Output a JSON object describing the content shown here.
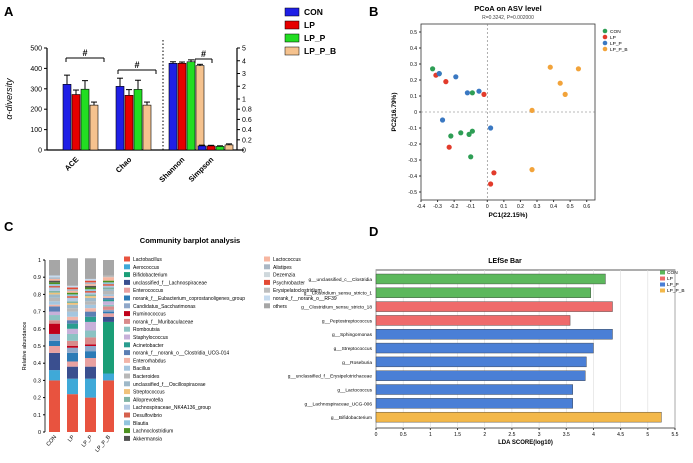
{
  "figure_title": "Four-panel comparison of gut microbiota among CON, LP, LP_P and LP_P_B groups",
  "colors": {
    "CON": "#1f1fe6",
    "LP": "#e60000",
    "LP_P": "#22dd22",
    "LP_P_B": "#f5c28e",
    "pcoa_CON": "#2e9e55",
    "pcoa_LP": "#e23b2b",
    "pcoa_LP_P": "#3a78c2",
    "pcoa_LP_P_B": "#f2a33a",
    "lefse_CON": "#5cb85c",
    "lefse_LP": "#ef6b6b",
    "lefse_LP_P": "#4a7fd6",
    "lefse_LP_P_B": "#f3b84a"
  },
  "chart_data": [
    {
      "panel_label": "A",
      "type": "bar",
      "ylabel": "α-diversity",
      "categories": [
        "ACE",
        "Chao",
        "Shannon",
        "Simpson"
      ],
      "left_axis": {
        "ylim": [
          0,
          500
        ],
        "ticks": [
          "0",
          "100",
          "200",
          "300",
          "400",
          "500"
        ],
        "applies_to": [
          "ACE",
          "Chao"
        ]
      },
      "right_axis": {
        "ylim": [
          0,
          5
        ],
        "ticks": [
          "0",
          "0.2",
          "0.4",
          "0.6",
          "0.8",
          "1",
          "2",
          "3",
          "4",
          "5"
        ],
        "applies_to": [
          "Shannon",
          "Simpson"
        ]
      },
      "series": [
        {
          "name": "CON",
          "values": [
            322,
            312,
            3.8,
            0.08
          ],
          "errors": [
            45,
            40,
            0.12,
            0.015
          ]
        },
        {
          "name": "LP",
          "values": [
            272,
            268,
            3.8,
            0.08
          ],
          "errors": [
            22,
            28,
            0.1,
            0.012
          ]
        },
        {
          "name": "LP_P",
          "values": [
            298,
            297,
            3.92,
            0.07
          ],
          "errors": [
            42,
            45,
            0.15,
            0.012
          ]
        },
        {
          "name": "LP_P_B",
          "values": [
            220,
            220,
            3.62,
            0.1
          ],
          "errors": [
            15,
            15,
            0.1,
            0.02
          ]
        }
      ],
      "significance_marker": "#",
      "legend": [
        "CON",
        "LP",
        "LP_P",
        "LP_P_B"
      ]
    },
    {
      "panel_label": "B",
      "type": "scatter",
      "title": "PCoA on ASV level",
      "subtitle": "R=0.3242, P=0.002000",
      "xlabel": "PC1(22.15%)",
      "ylabel": "PC2(16.79%)",
      "xlim": [
        -0.4,
        0.65
      ],
      "ylim": [
        -0.55,
        0.55
      ],
      "xticks": [
        "-0.4",
        "-0.3",
        "-0.2",
        "-0.1",
        "0",
        "0.1",
        "0.2",
        "0.3",
        "0.4",
        "0.5",
        "0.6"
      ],
      "yticks": [
        "-0.5",
        "-0.4",
        "-0.3",
        "-0.2",
        "-0.1",
        "0",
        "0.1",
        "0.2",
        "0.3",
        "0.4",
        "0.5"
      ],
      "legend": [
        "CON",
        "LP",
        "LP_P",
        "LP_P_B"
      ],
      "series": [
        {
          "name": "CON",
          "points": [
            [
              -0.33,
              0.27
            ],
            [
              -0.29,
              0.24
            ],
            [
              -0.09,
              0.12
            ],
            [
              -0.22,
              -0.15
            ],
            [
              -0.16,
              -0.13
            ],
            [
              -0.11,
              -0.14
            ],
            [
              -0.09,
              -0.12
            ],
            [
              -0.1,
              -0.28
            ]
          ]
        },
        {
          "name": "LP",
          "points": [
            [
              -0.31,
              0.23
            ],
            [
              -0.25,
              0.19
            ],
            [
              -0.02,
              0.11
            ],
            [
              -0.23,
              -0.22
            ],
            [
              0.04,
              -0.38
            ],
            [
              0.02,
              -0.45
            ]
          ]
        },
        {
          "name": "LP_P",
          "points": [
            [
              -0.29,
              0.24
            ],
            [
              -0.19,
              0.22
            ],
            [
              -0.05,
              0.13
            ],
            [
              -0.12,
              0.12
            ],
            [
              -0.27,
              -0.05
            ],
            [
              0.02,
              -0.1
            ]
          ]
        },
        {
          "name": "LP_P_B",
          "points": [
            [
              0.38,
              0.28
            ],
            [
              0.44,
              0.18
            ],
            [
              0.47,
              0.11
            ],
            [
              0.55,
              0.27
            ],
            [
              0.27,
              0.01
            ],
            [
              0.27,
              -0.36
            ]
          ]
        }
      ]
    },
    {
      "panel_label": "C",
      "type": "bar",
      "stacked": true,
      "title": "Community barplot analysis",
      "ylabel": "Relative abundance",
      "ylim": [
        0,
        1
      ],
      "yticks": [
        "0",
        "0.1",
        "0.2",
        "0.3",
        "0.4",
        "0.5",
        "0.6",
        "0.7",
        "0.8",
        "0.9",
        "1"
      ],
      "categories": [
        "CON",
        "LP",
        "LP_P",
        "LP_P_B"
      ],
      "taxa": [
        {
          "name": "Lactobacillus",
          "color": "#e8533f",
          "values": [
            0.3,
            0.22,
            0.2,
            0.3
          ]
        },
        {
          "name": "Aerococcus",
          "color": "#3fa9d8",
          "values": [
            0.06,
            0.09,
            0.11,
            0.04
          ]
        },
        {
          "name": "Bifidobacterium",
          "color": "#1b9e77",
          "values": [
            0.0,
            0.0,
            0.0,
            0.3
          ]
        },
        {
          "name": "unclassified_f__Lachnospiraceae",
          "color": "#3a4f8f",
          "values": [
            0.1,
            0.07,
            0.07,
            0.03
          ]
        },
        {
          "name": "Enterococcus",
          "color": "#e9a1a0",
          "values": [
            0.04,
            0.03,
            0.05,
            0.02
          ]
        },
        {
          "name": "norank_f__Eubacterium_coprostanoligenes_group",
          "color": "#2c7bb6",
          "values": [
            0.03,
            0.05,
            0.04,
            0.01
          ]
        },
        {
          "name": "Candidatus_Saccharimonas",
          "color": "#8fa7c9",
          "values": [
            0.04,
            0.03,
            0.03,
            0.01
          ]
        },
        {
          "name": "Ruminococcus",
          "color": "#c0001a",
          "values": [
            0.06,
            0.01,
            0.01,
            0.0
          ]
        },
        {
          "name": "norank_f__Muribaculaceae",
          "color": "#d98b8b",
          "values": [
            0.02,
            0.03,
            0.04,
            0.02
          ]
        },
        {
          "name": "Romboutsia",
          "color": "#8bc3c3",
          "values": [
            0.03,
            0.04,
            0.04,
            0.01
          ]
        },
        {
          "name": "Staphylococcus",
          "color": "#c7b0d9",
          "values": [
            0.02,
            0.03,
            0.05,
            0.02
          ]
        },
        {
          "name": "Acinetobacter",
          "color": "#2a9d8f",
          "values": [
            0.0,
            0.03,
            0.03,
            0.01
          ]
        },
        {
          "name": "norank_f__norank_o__Clostridia_UCG-014",
          "color": "#5b7fb4",
          "values": [
            0.03,
            0.02,
            0.03,
            0.01
          ]
        },
        {
          "name": "Enterorhabdus",
          "color": "#f2b5a8",
          "values": [
            0.01,
            0.02,
            0.02,
            0.01
          ]
        },
        {
          "name": "Bacillus",
          "color": "#a4c6df",
          "values": [
            0.02,
            0.03,
            0.02,
            0.01
          ]
        },
        {
          "name": "Bacteroides",
          "color": "#b8b8b8",
          "values": [
            0.02,
            0.02,
            0.02,
            0.02
          ]
        },
        {
          "name": "unclassified_f__Oscillospiraceae",
          "color": "#9eb8c8",
          "values": [
            0.02,
            0.02,
            0.02,
            0.01
          ]
        },
        {
          "name": "Streptococcus",
          "color": "#f0c27a",
          "values": [
            0.01,
            0.01,
            0.01,
            0.0
          ]
        },
        {
          "name": "Alloprevotella",
          "color": "#7fb3a4",
          "values": [
            0.01,
            0.01,
            0.01,
            0.01
          ]
        },
        {
          "name": "Lachnospiraceae_NK4A136_group",
          "color": "#b3c9e3",
          "values": [
            0.02,
            0.02,
            0.01,
            0.01
          ]
        },
        {
          "name": "Desulfovibrio",
          "color": "#d6604d",
          "values": [
            0.01,
            0.01,
            0.01,
            0.01
          ]
        },
        {
          "name": "Blautia",
          "color": "#92c5de",
          "values": [
            0.01,
            0.01,
            0.01,
            0.01
          ]
        },
        {
          "name": "Lachnoclostridium",
          "color": "#4d9221",
          "values": [
            0.01,
            0.01,
            0.01,
            0.01
          ]
        },
        {
          "name": "Akkermansia",
          "color": "#525252",
          "values": [
            0.01,
            0.0,
            0.01,
            0.0
          ]
        },
        {
          "name": "Lactococcus",
          "color": "#f7b6a0",
          "values": [
            0.01,
            0.01,
            0.01,
            0.02
          ]
        },
        {
          "name": "Alistipes",
          "color": "#aab7c4",
          "values": [
            0.01,
            0.01,
            0.01,
            0.0
          ]
        },
        {
          "name": "Dezemzia",
          "color": "#cfd8dc",
          "values": [
            0.0,
            0.0,
            0.0,
            0.0
          ]
        },
        {
          "name": "Psychrobacter",
          "color": "#e34a33",
          "values": [
            0.0,
            0.01,
            0.01,
            0.0
          ]
        },
        {
          "name": "Erysipelatoclostridium",
          "color": "#bdbdbd",
          "values": [
            0.0,
            0.0,
            0.0,
            0.01
          ]
        },
        {
          "name": "norank_f__norank_o__RF39",
          "color": "#c6dbef",
          "values": [
            0.01,
            0.01,
            0.01,
            0.0
          ]
        },
        {
          "name": "others",
          "color": "#a6a6a6",
          "values": [
            0.09,
            0.16,
            0.12,
            0.09
          ]
        }
      ]
    },
    {
      "panel_label": "D",
      "type": "bar",
      "orientation": "horizontal",
      "title": "LEfSe Bar",
      "xlabel": "LDA SCORE(log10)",
      "xlim": [
        0,
        5.5
      ],
      "xticks": [
        "0",
        "0.5",
        "1",
        "1.5",
        "2",
        "2.5",
        "3",
        "3.5",
        "4",
        "4.5",
        "5",
        "5.5"
      ],
      "legend": [
        "CON",
        "LP",
        "LP_P",
        "LP_P_B"
      ],
      "bars": [
        {
          "label": "g__unclassified_c__Clostridia",
          "group": "CON",
          "value": 4.22
        },
        {
          "label": "g__Clostridium_sensu_stricto_1",
          "group": "CON",
          "value": 3.95
        },
        {
          "label": "g__Clostridium_sensu_stricto_18",
          "group": "LP",
          "value": 4.35
        },
        {
          "label": "g__Peptostreptococcus",
          "group": "LP",
          "value": 3.57
        },
        {
          "label": "g__Sphingomonas",
          "group": "LP_P",
          "value": 4.35
        },
        {
          "label": "g__Streptococcus",
          "group": "LP_P",
          "value": 4.0
        },
        {
          "label": "g__Roseburia",
          "group": "LP_P",
          "value": 3.87
        },
        {
          "label": "g__unclassified_f__Erysipelotrichaceae",
          "group": "LP_P",
          "value": 3.85
        },
        {
          "label": "g__Lactococcus",
          "group": "LP_P",
          "value": 3.62
        },
        {
          "label": "g__Lachnospiraceae_UCG-006",
          "group": "LP_P",
          "value": 3.62
        },
        {
          "label": "g__Bifidobacterium",
          "group": "LP_P_B",
          "value": 5.25
        }
      ]
    }
  ]
}
